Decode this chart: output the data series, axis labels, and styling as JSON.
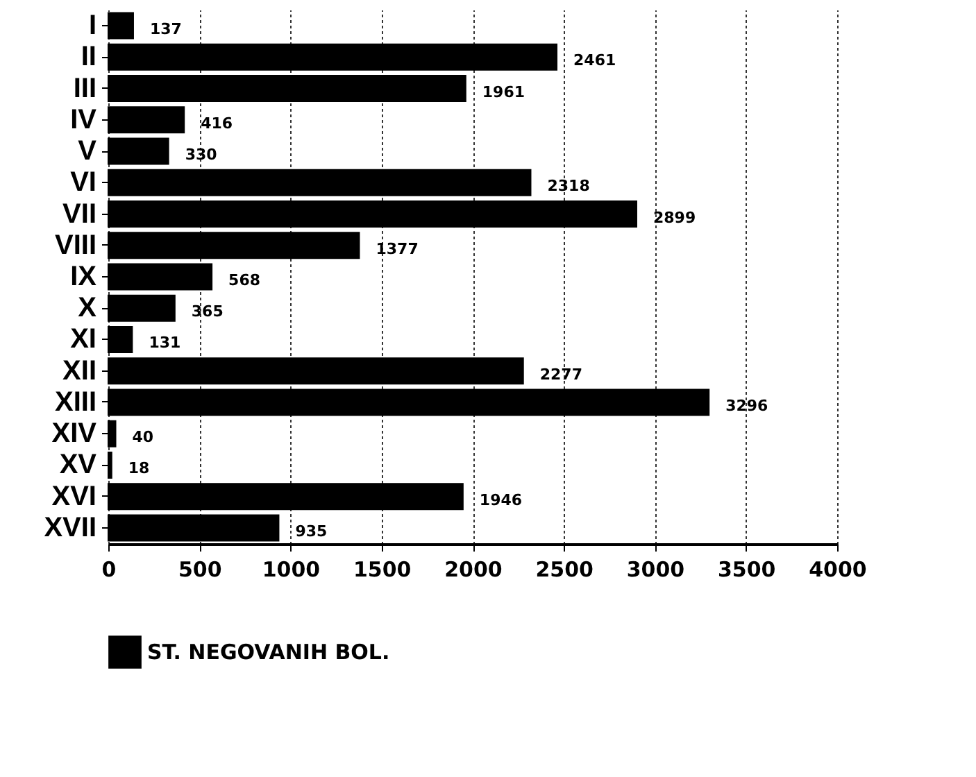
{
  "chart_data": {
    "type": "bar",
    "orientation": "horizontal",
    "categories": [
      "I",
      "II",
      "III",
      "IV",
      "V",
      "VI",
      "VII",
      "VIII",
      "IX",
      "X",
      "XI",
      "XII",
      "XIII",
      "XIV",
      "XV",
      "XVI",
      "XVII"
    ],
    "series": [
      {
        "name": "ST. NEGOVANIH BOL.",
        "color": "#000000",
        "values": [
          137,
          2461,
          1961,
          416,
          330,
          2318,
          2899,
          1377,
          568,
          365,
          131,
          2277,
          3296,
          40,
          18,
          1946,
          935
        ]
      }
    ],
    "xlim": [
      0,
      4000
    ],
    "xticks": [
      0,
      500,
      1000,
      1500,
      2000,
      2500,
      3000,
      3500,
      4000
    ],
    "grid": "x",
    "legend": "bottom",
    "data_labels": true
  }
}
